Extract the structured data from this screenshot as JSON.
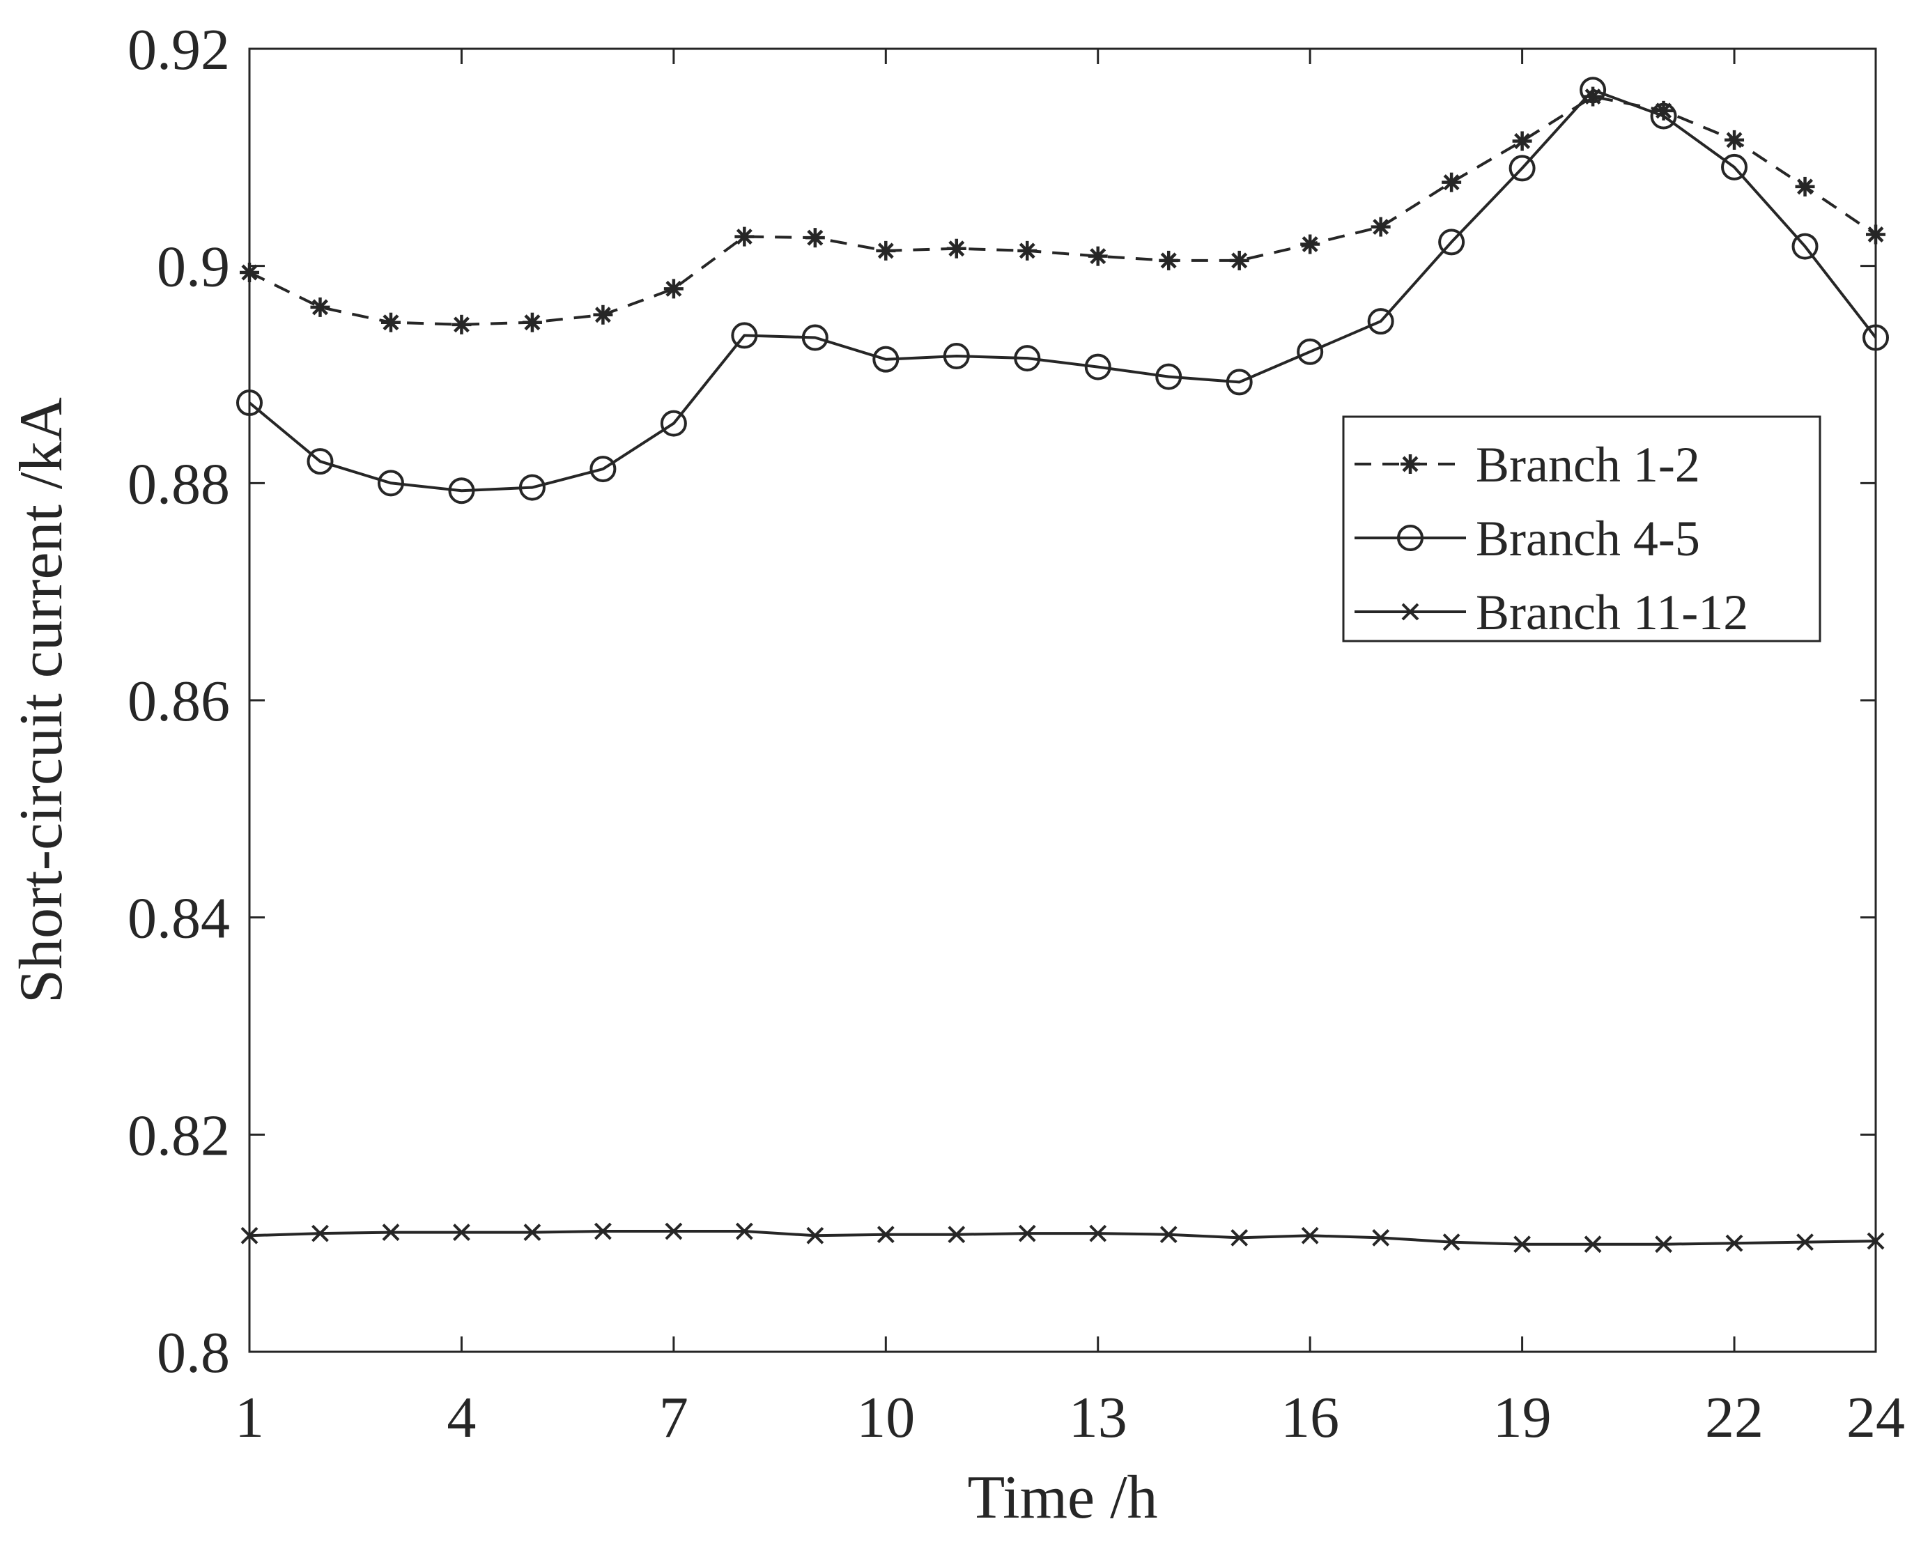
{
  "chart_data": {
    "type": "line",
    "title": "",
    "xlabel": "Time /h",
    "ylabel": "Short-circuit current /kA",
    "xlim": [
      1,
      24
    ],
    "ylim": [
      0.8,
      0.92
    ],
    "xticks": [
      1,
      4,
      7,
      10,
      13,
      16,
      19,
      22,
      24
    ],
    "xtick_labels": [
      "1",
      "4",
      "7",
      "10",
      "13",
      "16",
      "19",
      "22",
      "24"
    ],
    "yticks": [
      0.8,
      0.82,
      0.84,
      0.86,
      0.88,
      0.9,
      0.92
    ],
    "ytick_labels": [
      "0.8",
      "0.82",
      "0.84",
      "0.86",
      "0.88",
      "0.9",
      "0.92"
    ],
    "grid": false,
    "legend_position": "top-right",
    "x": [
      1,
      2,
      3,
      4,
      5,
      6,
      7,
      8,
      9,
      10,
      11,
      12,
      13,
      14,
      15,
      16,
      17,
      18,
      19,
      20,
      21,
      22,
      23,
      24
    ],
    "series": [
      {
        "name": "Branch 1-2",
        "line_style": "dashed",
        "marker": "asterisk",
        "color": "#1a1a1a",
        "values": [
          0.8994,
          0.8962,
          0.8948,
          0.8946,
          0.8948,
          0.8955,
          0.8979,
          0.9027,
          0.9026,
          0.9014,
          0.9016,
          0.9014,
          0.9009,
          0.9005,
          0.9005,
          0.902,
          0.9036,
          0.9077,
          0.9115,
          0.9156,
          0.9143,
          0.9116,
          0.9073,
          0.9029
        ]
      },
      {
        "name": "Branch 4-5",
        "line_style": "solid",
        "marker": "circle",
        "color": "#1a1a1a",
        "values": [
          0.8874,
          0.882,
          0.88,
          0.8793,
          0.8796,
          0.8813,
          0.8855,
          0.8936,
          0.8934,
          0.8914,
          0.8917,
          0.8915,
          0.8907,
          0.8898,
          0.8893,
          0.8921,
          0.8949,
          0.9022,
          0.909,
          0.9162,
          0.9138,
          0.9091,
          0.9018,
          0.8934
        ]
      },
      {
        "name": "Branch 11-12",
        "line_style": "solid",
        "marker": "x",
        "color": "#1a1a1a",
        "values": [
          0.8107,
          0.8109,
          0.811,
          0.811,
          0.811,
          0.8111,
          0.8111,
          0.8111,
          0.8107,
          0.8108,
          0.8108,
          0.8109,
          0.8109,
          0.8108,
          0.8105,
          0.8107,
          0.8105,
          0.8101,
          0.8099,
          0.8099,
          0.8099,
          0.81,
          0.8101,
          0.8102
        ]
      }
    ]
  }
}
